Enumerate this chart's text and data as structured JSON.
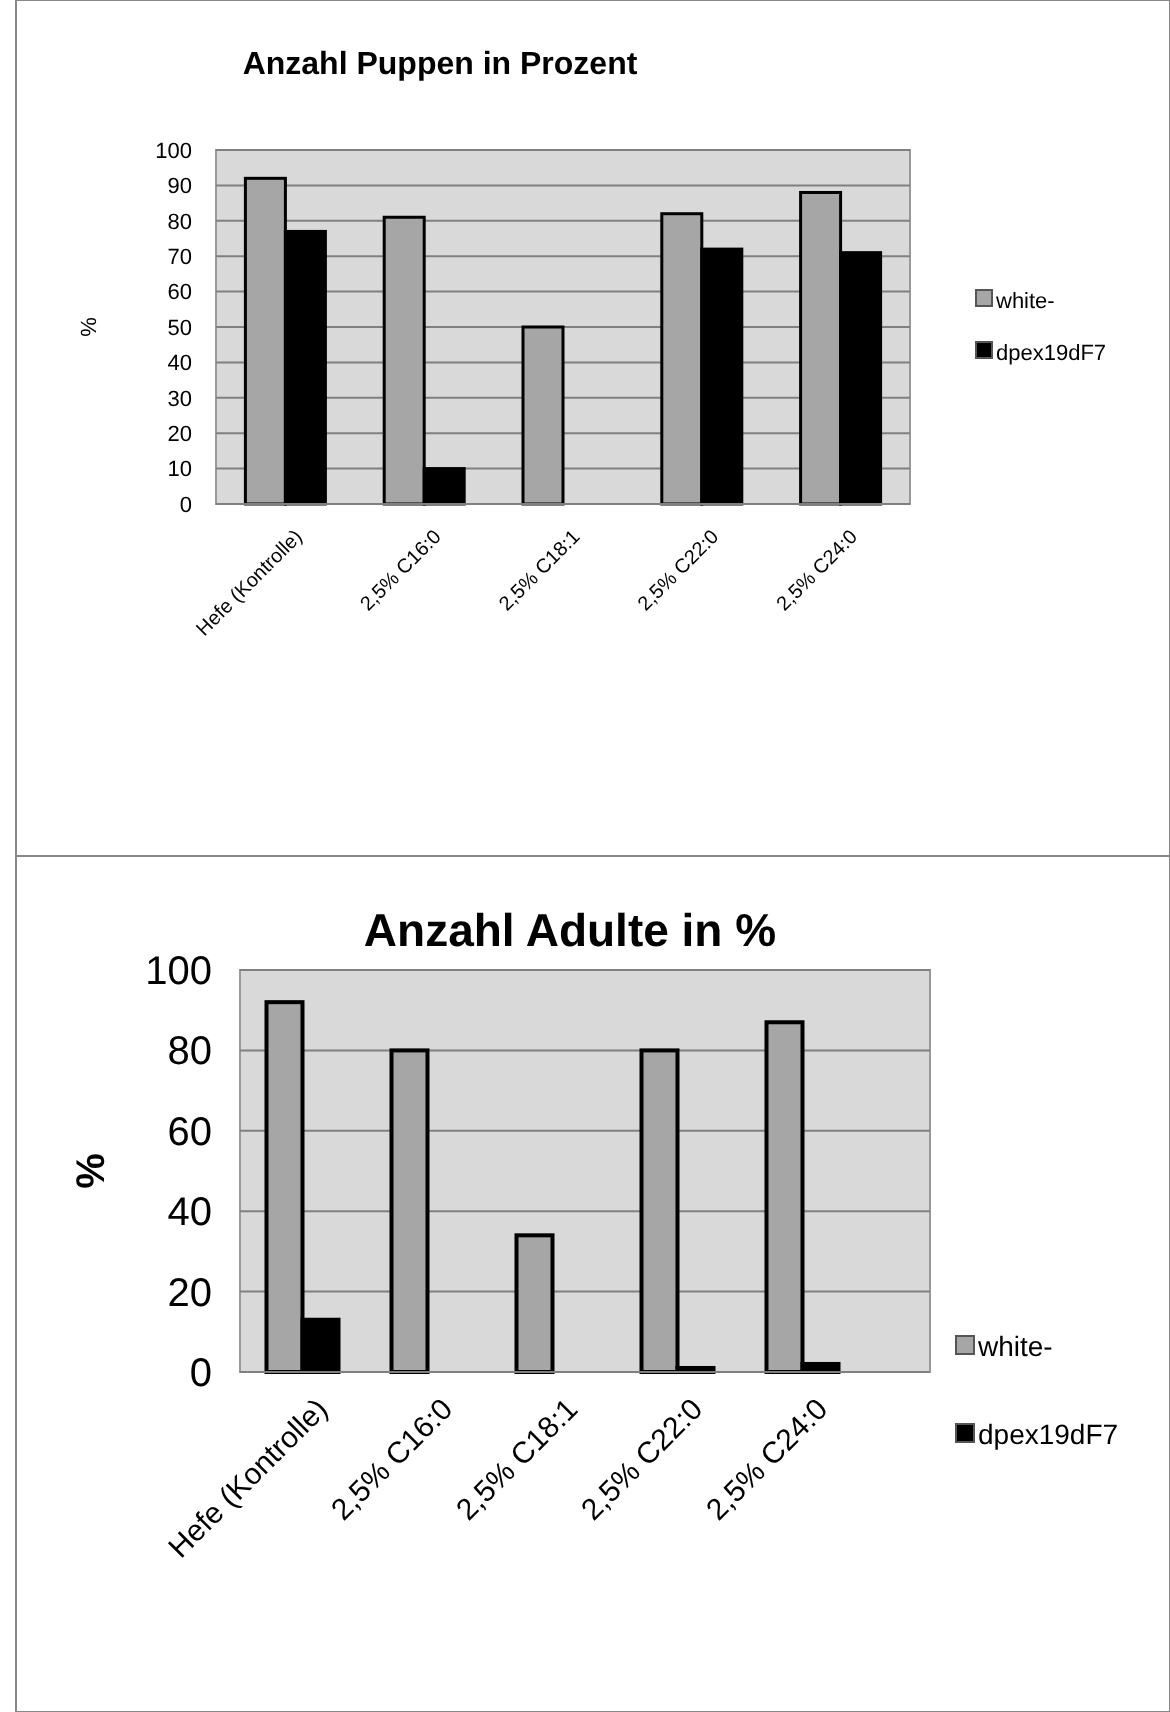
{
  "chart_data": [
    {
      "type": "bar",
      "title": "Anzahl Puppen in Prozent",
      "ylabel": "%",
      "categories": [
        "Hefe (Kontrolle)",
        "2,5% C16:0",
        "2,5% C18:1",
        "2,5% C22:0",
        "2,5% C24:0"
      ],
      "series": [
        {
          "name": "white-",
          "color": "#a6a6a6",
          "values": [
            92,
            81,
            50,
            82,
            88
          ]
        },
        {
          "name": "dpex19dF7",
          "color": "#000000",
          "values": [
            77,
            10,
            0,
            72,
            71
          ]
        }
      ],
      "ylim": [
        0,
        100
      ],
      "yticks": [
        0,
        10,
        20,
        30,
        40,
        50,
        60,
        70,
        80,
        90,
        100
      ],
      "grid": "y",
      "legend": "right"
    },
    {
      "type": "bar",
      "title": "Anzahl Adulte in %",
      "ylabel": "%",
      "categories": [
        "Hefe (Kontrolle)",
        "2,5% C16:0",
        "2,5% C18:1",
        "2,5% C22:0",
        "2,5% C24:0"
      ],
      "series": [
        {
          "name": "white-",
          "color": "#a6a6a6",
          "values": [
            92,
            80,
            34,
            80,
            87
          ]
        },
        {
          "name": "dpex19dF7",
          "color": "#000000",
          "values": [
            13,
            0,
            0,
            1,
            2
          ]
        }
      ],
      "ylim": [
        0,
        100
      ],
      "yticks": [
        0,
        20,
        40,
        60,
        80,
        100
      ],
      "grid": "y",
      "legend": "bottom right"
    }
  ]
}
